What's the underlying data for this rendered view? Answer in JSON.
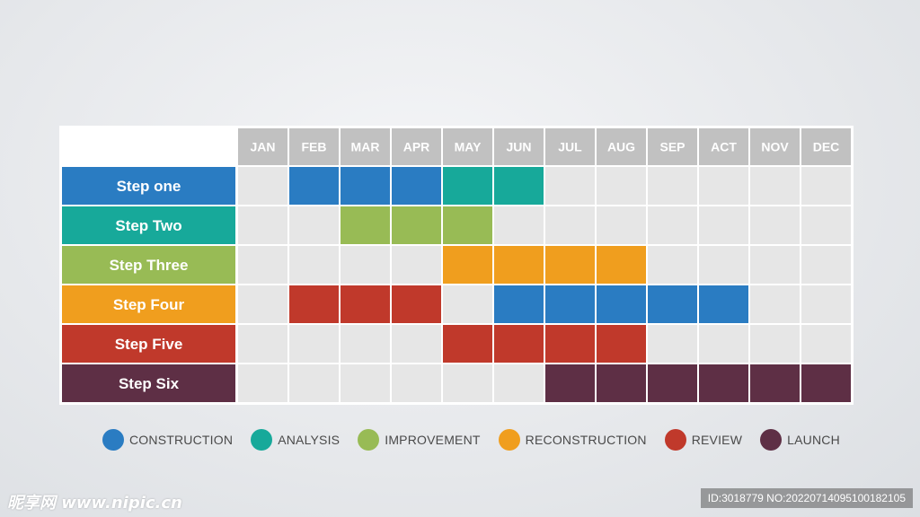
{
  "chart_data": {
    "type": "table",
    "months": [
      "JAN",
      "FEB",
      "MAR",
      "APR",
      "MAY",
      "JUN",
      "JUL",
      "AUG",
      "SEP",
      "ACT",
      "NOV",
      "DEC"
    ],
    "rows": [
      {
        "label": "Step one",
        "color": "#2a7cc2",
        "cells": [
          null,
          "construction",
          "construction",
          "construction",
          "analysis",
          "analysis",
          null,
          null,
          null,
          null,
          null,
          null
        ]
      },
      {
        "label": "Step Two",
        "color": "#17a99a",
        "cells": [
          null,
          null,
          "improvement",
          "improvement",
          "improvement",
          null,
          null,
          null,
          null,
          null,
          null,
          null
        ]
      },
      {
        "label": "Step Three",
        "color": "#98bb55",
        "cells": [
          null,
          null,
          null,
          null,
          "reconstruction",
          "reconstruction",
          "reconstruction",
          "reconstruction",
          null,
          null,
          null,
          null
        ]
      },
      {
        "label": "Step Four",
        "color": "#f09e1e",
        "cells": [
          null,
          "review",
          "review",
          "review",
          null,
          "construction",
          "construction",
          "construction",
          "construction",
          "construction",
          null,
          null
        ]
      },
      {
        "label": "Step Five",
        "color": "#c0392b",
        "cells": [
          null,
          null,
          null,
          null,
          "review",
          "review",
          "review",
          "review",
          null,
          null,
          null,
          null
        ]
      },
      {
        "label": "Step Six",
        "color": "#5e2f45",
        "cells": [
          null,
          null,
          null,
          null,
          null,
          null,
          "launch",
          "launch",
          "launch",
          "launch",
          "launch",
          "launch"
        ]
      }
    ],
    "legend": [
      {
        "key": "construction",
        "label": "CONSTRUCTION",
        "color": "#2a7cc2"
      },
      {
        "key": "analysis",
        "label": "ANALYSIS",
        "color": "#17a99a"
      },
      {
        "key": "improvement",
        "label": "IMPROVEMENT",
        "color": "#98bb55"
      },
      {
        "key": "reconstruction",
        "label": "RECONSTRUCTION",
        "color": "#f09e1e"
      },
      {
        "key": "review",
        "label": "REVIEW",
        "color": "#c0392b"
      },
      {
        "key": "launch",
        "label": "LAUNCH",
        "color": "#5e2f45"
      }
    ],
    "header_color": "#c1c1c1",
    "empty_color": "#e6e6e6"
  },
  "watermark": {
    "logo": "昵享网 www.nipic.cn",
    "id": "ID:3018779 NO:20220714095100182105"
  }
}
